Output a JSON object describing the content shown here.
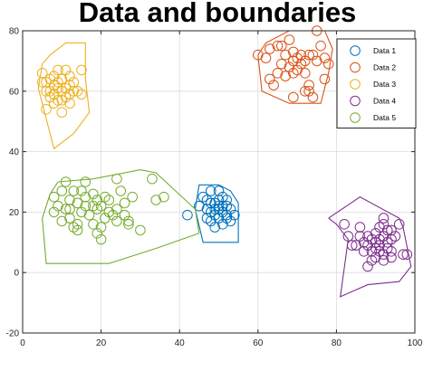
{
  "chart_data": {
    "type": "scatter",
    "title": "Data and boundaries",
    "xlabel": "",
    "ylabel": "",
    "xlim": [
      0,
      100
    ],
    "ylim": [
      -20,
      80
    ],
    "xticks": [
      0,
      20,
      40,
      60,
      80,
      100
    ],
    "yticks": [
      -20,
      0,
      20,
      40,
      60,
      80
    ],
    "grid": true,
    "legend_position": "top-right",
    "series": [
      {
        "name": "Data 1",
        "color": "#0072BD",
        "points": [
          [
            42,
            19
          ],
          [
            45,
            22
          ],
          [
            46,
            25
          ],
          [
            47,
            18
          ],
          [
            47,
            21
          ],
          [
            48,
            27
          ],
          [
            48,
            20
          ],
          [
            48,
            17
          ],
          [
            49,
            23
          ],
          [
            49,
            19
          ],
          [
            49,
            15
          ],
          [
            50,
            27
          ],
          [
            50,
            22
          ],
          [
            50,
            18
          ],
          [
            50,
            21
          ],
          [
            51,
            20
          ],
          [
            51,
            25
          ],
          [
            51,
            16
          ],
          [
            52,
            22
          ],
          [
            52,
            19
          ],
          [
            52,
            24
          ],
          [
            53,
            21
          ],
          [
            53,
            17
          ],
          [
            54,
            19
          ],
          [
            48,
            23
          ],
          [
            50,
            24
          ],
          [
            47,
            24
          ],
          [
            51,
            22
          ],
          [
            49,
            21
          ],
          [
            52,
            18
          ]
        ],
        "boundary": [
          [
            44,
            21
          ],
          [
            45,
            29
          ],
          [
            50,
            29
          ],
          [
            53,
            27
          ],
          [
            55,
            23
          ],
          [
            55,
            10
          ],
          [
            46,
            10
          ],
          [
            44,
            21
          ]
        ]
      },
      {
        "name": "Data 2",
        "color": "#D95319",
        "points": [
          [
            60,
            72
          ],
          [
            62,
            71
          ],
          [
            63,
            74
          ],
          [
            63,
            64
          ],
          [
            64,
            62
          ],
          [
            65,
            66
          ],
          [
            66,
            69
          ],
          [
            66,
            75
          ],
          [
            67,
            72
          ],
          [
            67,
            65
          ],
          [
            68,
            68
          ],
          [
            68,
            77
          ],
          [
            69,
            70
          ],
          [
            69,
            66
          ],
          [
            69,
            73
          ],
          [
            70,
            71
          ],
          [
            70,
            67
          ],
          [
            71,
            69
          ],
          [
            71,
            72
          ],
          [
            72,
            66
          ],
          [
            72,
            70
          ],
          [
            73,
            72
          ],
          [
            73,
            62
          ],
          [
            73,
            60
          ],
          [
            74,
            58
          ],
          [
            74,
            72
          ],
          [
            75,
            80
          ],
          [
            75,
            70
          ],
          [
            76,
            75
          ],
          [
            77,
            64
          ],
          [
            77,
            71
          ],
          [
            78,
            69
          ],
          [
            69,
            58
          ],
          [
            72,
            60
          ],
          [
            65,
            75
          ]
        ],
        "boundary": [
          [
            60,
            72
          ],
          [
            61,
            60
          ],
          [
            68,
            56
          ],
          [
            76,
            56
          ],
          [
            78,
            66
          ],
          [
            79,
            74
          ],
          [
            77,
            80
          ],
          [
            68,
            80
          ],
          [
            62,
            76
          ],
          [
            60,
            72
          ]
        ]
      },
      {
        "name": "Data 3",
        "color": "#EDB120",
        "points": [
          [
            5,
            66
          ],
          [
            5,
            63
          ],
          [
            6,
            63
          ],
          [
            6,
            60
          ],
          [
            6,
            54
          ],
          [
            7,
            64
          ],
          [
            7,
            60
          ],
          [
            7,
            58
          ],
          [
            8,
            65
          ],
          [
            8,
            62
          ],
          [
            8,
            59
          ],
          [
            8,
            56
          ],
          [
            9,
            67
          ],
          [
            9,
            63
          ],
          [
            9,
            61
          ],
          [
            9,
            57
          ],
          [
            10,
            64
          ],
          [
            10,
            60
          ],
          [
            10,
            53
          ],
          [
            11,
            67
          ],
          [
            11,
            61
          ],
          [
            11,
            58
          ],
          [
            12,
            62
          ],
          [
            12,
            59
          ],
          [
            12,
            56
          ],
          [
            13,
            60
          ],
          [
            13,
            63
          ],
          [
            14,
            60
          ],
          [
            15,
            67
          ],
          [
            15,
            59
          ],
          [
            10,
            57
          ],
          [
            12,
            65
          ]
        ],
        "boundary": [
          [
            5,
            69
          ],
          [
            7,
            72
          ],
          [
            11,
            76
          ],
          [
            16,
            76
          ],
          [
            16,
            64
          ],
          [
            17,
            53
          ],
          [
            13,
            46
          ],
          [
            8,
            41
          ],
          [
            4,
            61
          ],
          [
            5,
            69
          ]
        ]
      },
      {
        "name": "Data 4",
        "color": "#7E2F8E",
        "points": [
          [
            82,
            16
          ],
          [
            83,
            12
          ],
          [
            84,
            9
          ],
          [
            85,
            9
          ],
          [
            86,
            12
          ],
          [
            86,
            15
          ],
          [
            87,
            10
          ],
          [
            87,
            7
          ],
          [
            88,
            2
          ],
          [
            88,
            12
          ],
          [
            89,
            7
          ],
          [
            89,
            4
          ],
          [
            89,
            11
          ],
          [
            90,
            13
          ],
          [
            90,
            8
          ],
          [
            90,
            5
          ],
          [
            91,
            11
          ],
          [
            91,
            15
          ],
          [
            91,
            9
          ],
          [
            91,
            7
          ],
          [
            92,
            18
          ],
          [
            92,
            12
          ],
          [
            92,
            6
          ],
          [
            92,
            4
          ],
          [
            93,
            10
          ],
          [
            93,
            14
          ],
          [
            93,
            8
          ],
          [
            94,
            11
          ],
          [
            94,
            7
          ],
          [
            94,
            5
          ],
          [
            95,
            12
          ],
          [
            96,
            16
          ],
          [
            97,
            6
          ],
          [
            98,
            6
          ],
          [
            90,
            10
          ],
          [
            88,
            9
          ],
          [
            92,
            16
          ],
          [
            94,
            14
          ]
        ],
        "boundary": [
          [
            78,
            18
          ],
          [
            80,
            16
          ],
          [
            83,
            11
          ],
          [
            81,
            -8
          ],
          [
            88,
            -4
          ],
          [
            96,
            -3
          ],
          [
            99,
            2
          ],
          [
            97,
            15
          ],
          [
            96,
            18
          ],
          [
            86,
            25
          ],
          [
            78,
            18
          ]
        ]
      },
      {
        "name": "Data 5",
        "color": "#77AC30",
        "points": [
          [
            8,
            20
          ],
          [
            8,
            25
          ],
          [
            9,
            22
          ],
          [
            10,
            27
          ],
          [
            10,
            17
          ],
          [
            11,
            21
          ],
          [
            11,
            30
          ],
          [
            12,
            18
          ],
          [
            12,
            24
          ],
          [
            13,
            15
          ],
          [
            13,
            27
          ],
          [
            14,
            23
          ],
          [
            14,
            16
          ],
          [
            15,
            20
          ],
          [
            15,
            27
          ],
          [
            16,
            22
          ],
          [
            16,
            25
          ],
          [
            17,
            19
          ],
          [
            18,
            22
          ],
          [
            18,
            26
          ],
          [
            18,
            16
          ],
          [
            19,
            21
          ],
          [
            19,
            13
          ],
          [
            19,
            24
          ],
          [
            20,
            22
          ],
          [
            20,
            15
          ],
          [
            21,
            18
          ],
          [
            21,
            25
          ],
          [
            22,
            24
          ],
          [
            22,
            20
          ],
          [
            23,
            19
          ],
          [
            24,
            21
          ],
          [
            24,
            31
          ],
          [
            25,
            27
          ],
          [
            26,
            23
          ],
          [
            26,
            19
          ],
          [
            27,
            17
          ],
          [
            27,
            16
          ],
          [
            28,
            25
          ],
          [
            30,
            14
          ],
          [
            33,
            31
          ],
          [
            34,
            24
          ],
          [
            36,
            25
          ],
          [
            16,
            30
          ],
          [
            20,
            11
          ],
          [
            14,
            14
          ],
          [
            12,
            21
          ],
          [
            24,
            17
          ]
        ],
        "boundary": [
          [
            9,
            30
          ],
          [
            18,
            31
          ],
          [
            30,
            34
          ],
          [
            34,
            33
          ],
          [
            44,
            21
          ],
          [
            45,
            13
          ],
          [
            34,
            8
          ],
          [
            22,
            3
          ],
          [
            6,
            3
          ],
          [
            5,
            18
          ],
          [
            7,
            26
          ],
          [
            9,
            30
          ]
        ]
      }
    ]
  }
}
